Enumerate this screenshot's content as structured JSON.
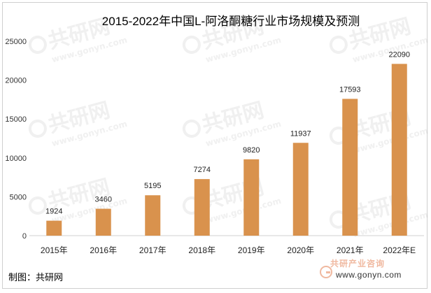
{
  "chart_data": {
    "type": "bar",
    "title": "2015-2022年中国L-阿洛酮糖行业市场规模及预测",
    "categories": [
      "2015年",
      "2016年",
      "2017年",
      "2018年",
      "2019年",
      "2020年",
      "2021年",
      "2022年E"
    ],
    "values": [
      1924,
      3460,
      5195,
      7274,
      9820,
      11937,
      17593,
      22090
    ],
    "data_labels": [
      "1924",
      "3460",
      "5195",
      "7274",
      "9820",
      "11937",
      "17593",
      "22090"
    ],
    "y_ticks": [
      "0",
      "5000",
      "10000",
      "15000",
      "20000",
      "25000"
    ],
    "ylim": [
      0,
      25000
    ],
    "grid": false,
    "legend": "none",
    "bar_color": "#d9924d"
  },
  "source": "制图：共研网",
  "footer": {
    "brand": "共研产业咨询",
    "url": "www.gonyn.com"
  },
  "watermark": {
    "logo_text": "共研网",
    "url_text": "www.gonyn.com"
  }
}
